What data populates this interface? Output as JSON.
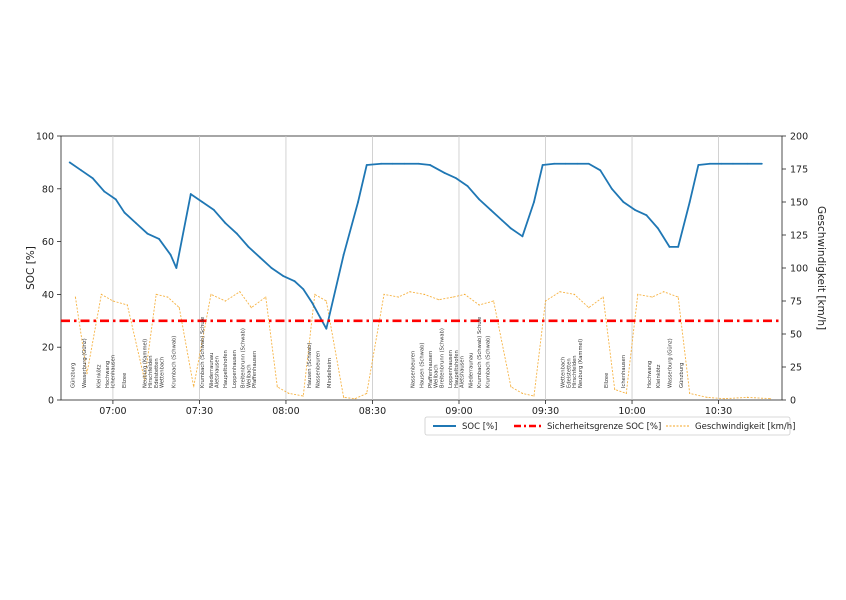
{
  "chart_data": {
    "type": "line",
    "xlabel": "",
    "ylabel_left": "SOC [%]",
    "ylabel_right": "Geschwindigkeit [km/h]",
    "x_range": [
      "06:42",
      "10:52"
    ],
    "ylim_left": [
      0,
      100
    ],
    "ylim_right": [
      0,
      200
    ],
    "x_ticks": [
      "07:00",
      "07:30",
      "08:00",
      "08:30",
      "09:00",
      "09:30",
      "10:00",
      "10:30"
    ],
    "y_ticks_left": [
      0,
      20,
      40,
      60,
      80,
      100
    ],
    "y_ticks_right": [
      0,
      25,
      50,
      75,
      100,
      125,
      150,
      175,
      200
    ],
    "grid": "vertical",
    "legend_position": "below",
    "series": [
      {
        "name": "SOC [%]",
        "axis": "left",
        "color": "#1f77b4",
        "style": "solid",
        "x": [
          "06:45",
          "06:49",
          "06:53",
          "06:57",
          "07:01",
          "07:04",
          "07:08",
          "07:12",
          "07:16",
          "07:20",
          "07:22",
          "07:27",
          "07:31",
          "07:35",
          "07:39",
          "07:43",
          "07:47",
          "07:51",
          "07:55",
          "07:59",
          "08:03",
          "08:06",
          "08:09",
          "08:12",
          "08:14",
          "08:20",
          "08:25",
          "08:28",
          "08:33",
          "08:37",
          "08:41",
          "08:46",
          "08:50",
          "08:55",
          "08:59",
          "09:03",
          "09:07",
          "09:11",
          "09:15",
          "09:18",
          "09:22",
          "09:26",
          "09:29",
          "09:33",
          "09:37",
          "09:41",
          "09:45",
          "09:49",
          "09:53",
          "09:57",
          "10:01",
          "10:05",
          "10:09",
          "10:13",
          "10:16",
          "10:20",
          "10:23",
          "10:27",
          "10:31",
          "10:35",
          "10:40",
          "10:45"
        ],
        "y": [
          90,
          87,
          84,
          79,
          76,
          71,
          67,
          63,
          61,
          55,
          50,
          78,
          75,
          72,
          67,
          63,
          58,
          54,
          50,
          47,
          45,
          42,
          37,
          31,
          27,
          55,
          75,
          89,
          89.5,
          89.5,
          89.5,
          89.5,
          89,
          86,
          84,
          81,
          76,
          72,
          68,
          65,
          62,
          75,
          89,
          89.5,
          89.5,
          89.5,
          89.5,
          87,
          80,
          75,
          72,
          70,
          65,
          58,
          58,
          75,
          89,
          89.5,
          89.5,
          89.5,
          89.5,
          89.5
        ]
      },
      {
        "name": "Sicherheitsgrenze SOC [%]",
        "axis": "left",
        "color": "#ff0000",
        "style": "dash-dot",
        "x": [
          "06:42",
          "10:52"
        ],
        "y": [
          30,
          30
        ]
      },
      {
        "name": "Geschwindigkeit [km/h]",
        "axis": "right",
        "color": "#f5a623",
        "style": "dotted",
        "x": [
          "06:47",
          "06:51",
          "06:56",
          "07:00",
          "07:05",
          "07:11",
          "07:15",
          "07:19",
          "07:23",
          "07:28",
          "07:34",
          "07:39",
          "07:44",
          "07:48",
          "07:53",
          "07:57",
          "08:01",
          "08:06",
          "08:10",
          "08:14",
          "08:20",
          "08:24",
          "08:28",
          "08:34",
          "08:39",
          "08:43",
          "08:48",
          "08:53",
          "08:58",
          "09:02",
          "09:07",
          "09:12",
          "09:18",
          "09:22",
          "09:26",
          "09:30",
          "09:35",
          "09:40",
          "09:45",
          "09:50",
          "09:54",
          "09:58",
          "10:02",
          "10:07",
          "10:11",
          "10:16",
          "10:20",
          "10:26",
          "10:32",
          "10:40",
          "10:48"
        ],
        "y": [
          78,
          20,
          80,
          75,
          72,
          15,
          80,
          78,
          70,
          10,
          80,
          75,
          82,
          70,
          78,
          10,
          5,
          3,
          80,
          75,
          2,
          1,
          5,
          80,
          78,
          82,
          80,
          76,
          78,
          80,
          72,
          75,
          10,
          5,
          3,
          75,
          82,
          80,
          70,
          78,
          8,
          5,
          80,
          78,
          82,
          78,
          5,
          2,
          1,
          2,
          1
        ]
      }
    ],
    "stop_labels": [
      {
        "time": "06:46",
        "text": "Günzburg"
      },
      {
        "time": "06:50",
        "text": "Wasserburg (Günz)"
      },
      {
        "time": "06:55",
        "text": "Kleinkötz"
      },
      {
        "time": "06:58",
        "text": "Hochwang"
      },
      {
        "time": "07:00",
        "text": "Ichenhausen"
      },
      {
        "time": "07:04",
        "text": "Ellzee"
      },
      {
        "time": "07:11",
        "text": "Neuburg (Kammel)"
      },
      {
        "time": "07:13",
        "text": "Hirschfelden"
      },
      {
        "time": "07:15",
        "text": "Edelstetten"
      },
      {
        "time": "07:17",
        "text": "Wettenbach"
      },
      {
        "time": "07:21",
        "text": "Krumbach (Schwab)"
      },
      {
        "time": "07:31",
        "text": "Krumbach (Schwab) Schule"
      },
      {
        "time": "07:34",
        "text": "Niederraunau"
      },
      {
        "time": "07:36",
        "text": "Aletshausen"
      },
      {
        "time": "07:39",
        "text": "Haupeltshofen"
      },
      {
        "time": "07:42",
        "text": "Loppenhausen"
      },
      {
        "time": "07:45",
        "text": "Breitenbrunn (Schwab)"
      },
      {
        "time": "07:47",
        "text": "Weilbach"
      },
      {
        "time": "07:49",
        "text": "Pfaffenhausen"
      },
      {
        "time": "08:08",
        "text": "Hausen (Schwab)"
      },
      {
        "time": "08:11",
        "text": "Nassenbeuren"
      },
      {
        "time": "08:15",
        "text": "Mindelheim"
      },
      {
        "time": "08:44",
        "text": "Nassenbeuren"
      },
      {
        "time": "08:47",
        "text": "Hausen (Schwab)"
      },
      {
        "time": "08:50",
        "text": "Pfaffenhausen"
      },
      {
        "time": "08:52",
        "text": "Weilbach"
      },
      {
        "time": "08:54",
        "text": "Breitenbrunn (Schwab)"
      },
      {
        "time": "08:57",
        "text": "Loppenhausen"
      },
      {
        "time": "08:59",
        "text": "Haupeltshofen"
      },
      {
        "time": "09:01",
        "text": "Aletshausen"
      },
      {
        "time": "09:04",
        "text": "Niederraunau"
      },
      {
        "time": "09:07",
        "text": "Krumbach (Schwab) Schule"
      },
      {
        "time": "09:10",
        "text": "Krumbach (Schwab)"
      },
      {
        "time": "09:36",
        "text": "Wettenbach"
      },
      {
        "time": "09:38",
        "text": "Edelstetten"
      },
      {
        "time": "09:40",
        "text": "Hirschfelden"
      },
      {
        "time": "09:42",
        "text": "Neuburg (Kammel)"
      },
      {
        "time": "09:51",
        "text": "Ellzee"
      },
      {
        "time": "09:57",
        "text": "Ichenhausen"
      },
      {
        "time": "10:06",
        "text": "Hochwang"
      },
      {
        "time": "10:09",
        "text": "Kleinkötz"
      },
      {
        "time": "10:13",
        "text": "Wasserburg (Günz)"
      },
      {
        "time": "10:17",
        "text": "Günzburg"
      }
    ]
  },
  "colors": {
    "soc": "#1f77b4",
    "limit": "#ff0000",
    "speed": "#f5a623",
    "grid": "#c8c8c8"
  }
}
